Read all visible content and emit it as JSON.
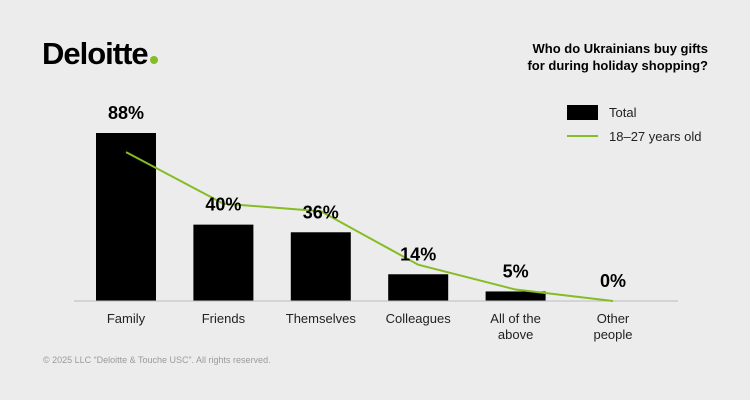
{
  "brand": {
    "logo_text": "Deloitte",
    "logo_dot_color": "#86BC25"
  },
  "question": {
    "line1": "Who do Ukrainians buy gifts",
    "line2": "for during holiday shopping?"
  },
  "legend": {
    "total_label": "Total",
    "youth_label": "18–27 years old"
  },
  "footer": {
    "copyright": "© 2025 LLC “Deloitte & Touche USC”. All rights reserved."
  },
  "colors": {
    "bar": "#000000",
    "line": "#86BC25",
    "axis": "#bbbbbb",
    "background": "#ececec"
  },
  "chart_data": {
    "type": "bar",
    "categories": [
      [
        "Family"
      ],
      [
        "Friends"
      ],
      [
        "Themselves"
      ],
      [
        "Colleagues"
      ],
      [
        "All of the",
        "above"
      ],
      [
        "Other",
        "people"
      ]
    ],
    "series": [
      {
        "name": "Total",
        "type": "bar",
        "values": [
          88,
          40,
          36,
          14,
          5,
          0
        ]
      },
      {
        "name": "18–27 years old",
        "type": "line",
        "values": [
          78,
          51,
          47,
          19,
          6,
          0
        ]
      }
    ],
    "data_labels": [
      "88%",
      "40%",
      "36%",
      "14%",
      "5%",
      "0%"
    ],
    "ylim": [
      0,
      100
    ],
    "grid": false,
    "legend_position": "top-right"
  }
}
